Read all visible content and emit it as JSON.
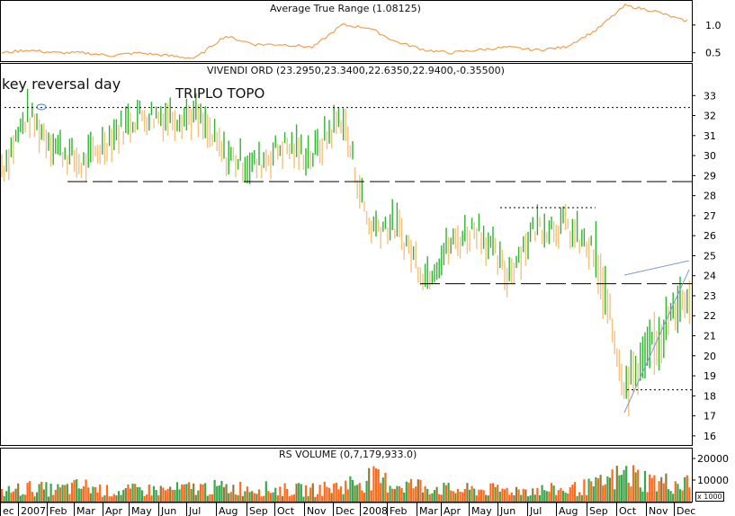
{
  "colors": {
    "up": "#2db52d",
    "down": "#f4c27a",
    "atr_line": "#f0a050",
    "vol_up": "#39a84b",
    "vol_down": "#ff6a1a",
    "vol_mix": "#8f7a3a",
    "grid": "#000000",
    "trendline": "#7a9ad8",
    "circle": "#3a80d0"
  },
  "atr_panel": {
    "title": "Average True Range (1.08125)",
    "ticks": [
      "1.0",
      "0.5"
    ]
  },
  "price_panel": {
    "title": "VIVENDI ORD (23.2950,23.3400,22.6350,22.9400,-0.35500)",
    "ticks": [
      "33",
      "32",
      "31",
      "30",
      "29",
      "28",
      "27",
      "26",
      "25",
      "24",
      "23",
      "22",
      "21",
      "20",
      "19",
      "18",
      "17",
      "16"
    ],
    "annotations": {
      "key_reversal": "key reversal day",
      "triplo_topo": "TRIPLO TOPO"
    }
  },
  "volume_panel": {
    "title": "RS VOLUME (0,7,179,933.0)",
    "ticks": [
      "20000",
      "10000"
    ],
    "unit_badge": "x 1000"
  },
  "x_axis": {
    "labels": [
      "ec",
      "2007",
      "Feb",
      "Mar",
      "Apr",
      "May",
      "Jun",
      "Jul",
      "Aug",
      "Sep",
      "Oct",
      "Nov",
      "Dec",
      "2008",
      "Feb",
      "Mar",
      "Apr",
      "May",
      "Jun",
      "Jul",
      "Aug",
      "Sep",
      "Oct",
      "Nov",
      "Dec"
    ]
  },
  "chart_data": {
    "type": "line",
    "title": "VIVENDI ORD (23.2950,23.3400,22.6350,22.9400,-0.35500)",
    "x": [
      "2006-12",
      "2007-01",
      "2007-02",
      "2007-03",
      "2007-04",
      "2007-05",
      "2007-06",
      "2007-07",
      "2007-08",
      "2007-09",
      "2007-10",
      "2007-11",
      "2007-12",
      "2008-01",
      "2008-02",
      "2008-03",
      "2008-04",
      "2008-05",
      "2008-06",
      "2008-07",
      "2008-08",
      "2008-09",
      "2008-10",
      "2008-11",
      "2008-12"
    ],
    "ylim": [
      15.5,
      34
    ],
    "series": [
      {
        "name": "VIVENDI ORD",
        "values": [
          29.5,
          32.0,
          30.5,
          29.5,
          31.0,
          32.0,
          32.0,
          32.0,
          30.0,
          29.5,
          30.5,
          30.0,
          32.0,
          26.5,
          26.5,
          24.0,
          25.5,
          26.5,
          24.0,
          26.5,
          26.5,
          25.0,
          18.5,
          20.5,
          23.0
        ]
      },
      {
        "name": "Average True Range",
        "values": [
          0.5,
          0.55,
          0.5,
          0.5,
          0.45,
          0.5,
          0.45,
          0.4,
          0.8,
          0.65,
          0.65,
          0.6,
          1.0,
          0.95,
          0.7,
          0.55,
          0.5,
          0.55,
          0.6,
          0.55,
          0.6,
          0.9,
          1.35,
          1.25,
          1.08
        ]
      },
      {
        "name": "RS VOLUME",
        "values": [
          5000,
          7000,
          6000,
          8000,
          5000,
          6000,
          6000,
          7000,
          7000,
          7000,
          6000,
          6000,
          8000,
          12000,
          9000,
          8000,
          6000,
          6000,
          6000,
          6000,
          6000,
          8000,
          14000,
          10000,
          9000
        ]
      }
    ],
    "atr_ylim": [
      0.35,
      1.45
    ],
    "volume_ylim": [
      0,
      25000
    ],
    "reference_levels": [
      32.4,
      28.7,
      27.4,
      23.6,
      18.3
    ],
    "grid": false
  }
}
